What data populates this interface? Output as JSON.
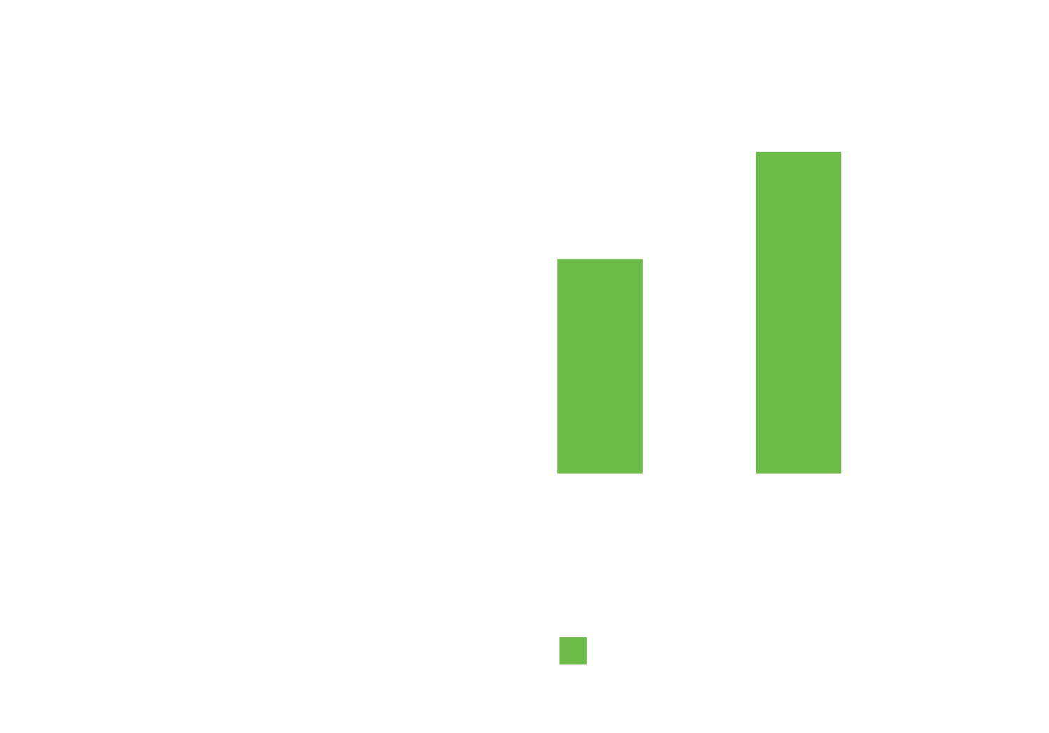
{
  "chart_data": {
    "type": "bar",
    "categories": [
      "",
      ""
    ],
    "series": [
      {
        "color": "#6cba48",
        "values": [
          2,
          3
        ]
      }
    ],
    "title": "",
    "xlabel": "",
    "ylabel": "",
    "ylim": [
      0,
      3
    ],
    "grid": false,
    "legend": {
      "position": "bottom",
      "labels": [
        ""
      ]
    }
  }
}
